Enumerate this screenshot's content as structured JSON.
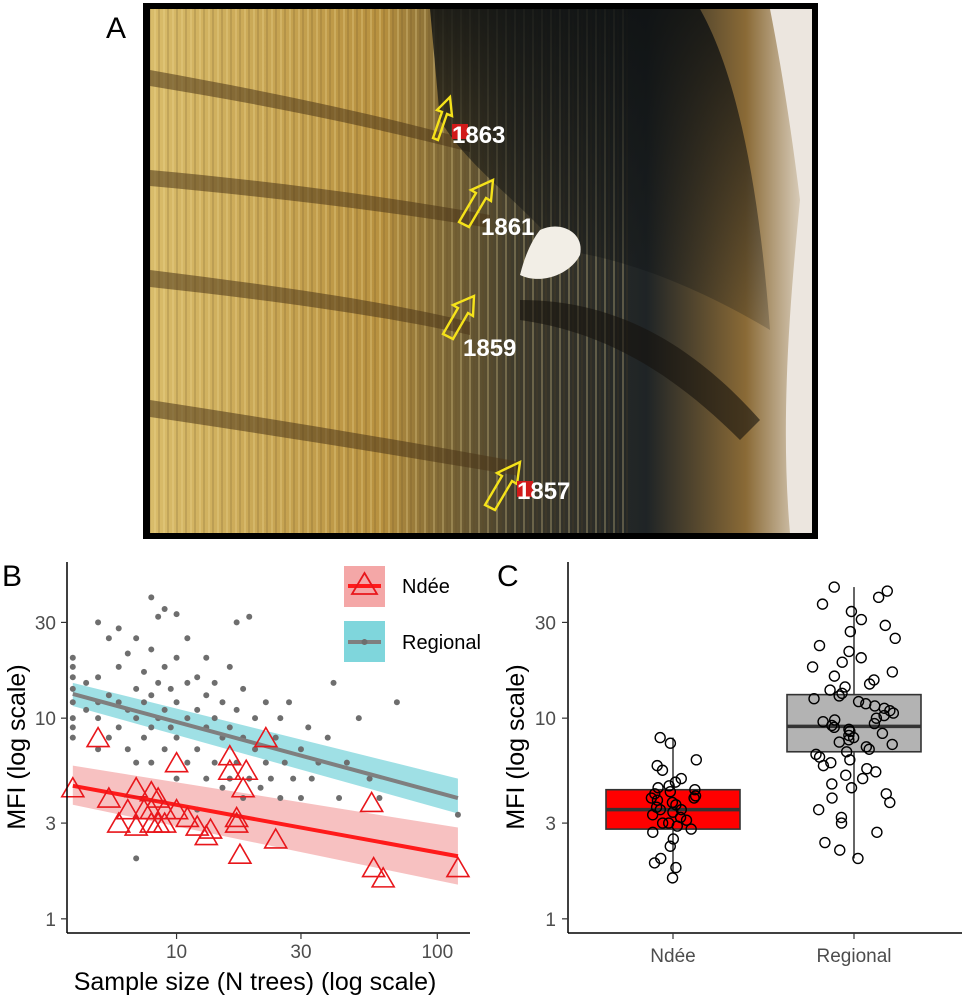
{
  "panels": {
    "a": {
      "letter": "A",
      "ring_years": [
        "1863",
        "1861",
        "1859",
        "1857"
      ]
    },
    "b": {
      "letter": "B"
    },
    "c": {
      "letter": "C"
    }
  },
  "colors": {
    "ndee": "#ff1a1a",
    "ndee_band": "#f4a7a7",
    "regional_line": "#7f7f7f",
    "regional_band": "#7fd6dc",
    "regional_points": "#6e6e6e",
    "ndee_box": "#ff0000",
    "regional_box": "#b3b3b3"
  },
  "chart_data": [
    {
      "type": "scatter",
      "panel": "B",
      "xlabel": "Sample size (N trees) (log scale)",
      "ylabel": "MFI (log scale)",
      "x_scale": "log",
      "y_scale": "log",
      "xlim": [
        3.8,
        130
      ],
      "ylim": [
        0.85,
        60
      ],
      "x_ticks": [
        10,
        30,
        100
      ],
      "y_ticks": [
        1,
        3,
        10,
        30
      ],
      "legend": {
        "position": "top-right",
        "entries": [
          "Ndée",
          "Regional"
        ]
      },
      "series": [
        {
          "name": "Ndée",
          "marker": "open-triangle",
          "points": [
            [
              4,
              4.5
            ],
            [
              5,
              8
            ],
            [
              5.5,
              4
            ],
            [
              6,
              3
            ],
            [
              6.5,
              3.5
            ],
            [
              7,
              2.9
            ],
            [
              7,
              4.5
            ],
            [
              7.5,
              3.5
            ],
            [
              8,
              3
            ],
            [
              8,
              4.3
            ],
            [
              8,
              3.5
            ],
            [
              8.5,
              3
            ],
            [
              8.5,
              4
            ],
            [
              9,
              3.5
            ],
            [
              9,
              3
            ],
            [
              10,
              6
            ],
            [
              10,
              3.5
            ],
            [
              11,
              3.2
            ],
            [
              12,
              2.9
            ],
            [
              13,
              2.6
            ],
            [
              13.5,
              2.8
            ],
            [
              16,
              6.5
            ],
            [
              16,
              5.5
            ],
            [
              17,
              3
            ],
            [
              17,
              3.2
            ],
            [
              17.5,
              2.1
            ],
            [
              18,
              4.5
            ],
            [
              18.5,
              5.5
            ],
            [
              22,
              8
            ],
            [
              24,
              2.5
            ],
            [
              56,
              3.8
            ],
            [
              57,
              1.8
            ],
            [
              62,
              1.6
            ],
            [
              120,
              1.8
            ]
          ],
          "trend": {
            "x": [
              4,
              120
            ],
            "y": [
              4.6,
              2.05
            ],
            "band_lower": [
              3.7,
              1.48
            ],
            "band_upper": [
              5.8,
              2.85
            ]
          }
        },
        {
          "name": "Regional",
          "marker": "filled-dot",
          "points": [
            [
              4,
              8
            ],
            [
              4,
              10
            ],
            [
              4,
              12
            ],
            [
              4,
              14
            ],
            [
              4,
              16
            ],
            [
              4,
              18
            ],
            [
              4,
              20
            ],
            [
              4,
              9
            ],
            [
              4.5,
              11
            ],
            [
              4.5,
              15
            ],
            [
              5,
              7
            ],
            [
              5,
              12
            ],
            [
              5,
              16
            ],
            [
              5,
              30
            ],
            [
              5,
              10
            ],
            [
              5.5,
              8
            ],
            [
              5.5,
              25
            ],
            [
              5.5,
              13
            ],
            [
              6,
              9
            ],
            [
              6,
              12
            ],
            [
              6,
              18
            ],
            [
              6,
              28
            ],
            [
              6.5,
              7
            ],
            [
              6.5,
              11
            ],
            [
              6.5,
              21
            ],
            [
              7,
              6
            ],
            [
              7,
              10
            ],
            [
              7,
              14
            ],
            [
              7,
              2
            ],
            [
              7,
              25
            ],
            [
              7.5,
              8
            ],
            [
              7.5,
              12
            ],
            [
              7.5,
              17
            ],
            [
              8,
              6
            ],
            [
              8,
              9
            ],
            [
              8,
              13
            ],
            [
              8,
              40
            ],
            [
              8,
              22
            ],
            [
              8.5,
              10
            ],
            [
              8.5,
              15
            ],
            [
              8.5,
              32
            ],
            [
              9,
              7
            ],
            [
              9,
              11
            ],
            [
              9,
              18
            ],
            [
              9,
              35
            ],
            [
              9.5,
              9
            ],
            [
              9.5,
              14
            ],
            [
              10,
              5
            ],
            [
              10,
              8
            ],
            [
              10,
              12
            ],
            [
              10,
              20
            ],
            [
              10,
              33
            ],
            [
              11,
              6
            ],
            [
              11,
              10
            ],
            [
              11,
              15
            ],
            [
              11,
              25
            ],
            [
              12,
              7
            ],
            [
              12,
              11
            ],
            [
              12,
              16
            ],
            [
              12,
              3.5
            ],
            [
              13,
              5
            ],
            [
              13,
              9
            ],
            [
              13,
              13
            ],
            [
              13,
              20
            ],
            [
              14,
              6
            ],
            [
              14,
              10
            ],
            [
              14,
              15
            ],
            [
              15,
              4.5
            ],
            [
              15,
              8
            ],
            [
              15,
              12
            ],
            [
              16,
              5
            ],
            [
              16,
              9
            ],
            [
              16,
              18
            ],
            [
              17,
              6
            ],
            [
              17,
              11
            ],
            [
              17,
              30
            ],
            [
              18,
              4
            ],
            [
              18,
              8
            ],
            [
              18,
              14
            ],
            [
              19,
              32
            ],
            [
              19,
              5
            ],
            [
              20,
              7
            ],
            [
              20,
              10
            ],
            [
              21,
              4.5
            ],
            [
              22,
              6
            ],
            [
              22,
              12
            ],
            [
              23,
              5
            ],
            [
              24,
              8
            ],
            [
              25,
              4
            ],
            [
              25,
              10
            ],
            [
              26,
              6
            ],
            [
              27,
              12
            ],
            [
              28,
              5
            ],
            [
              30,
              7
            ],
            [
              30,
              4
            ],
            [
              32,
              9
            ],
            [
              33,
              5
            ],
            [
              35,
              6
            ],
            [
              38,
              8
            ],
            [
              40,
              15
            ],
            [
              42,
              4
            ],
            [
              45,
              6
            ],
            [
              50,
              10
            ],
            [
              55,
              5
            ],
            [
              60,
              4
            ],
            [
              70,
              12
            ],
            [
              120,
              3.3
            ]
          ],
          "trend": {
            "x": [
              4,
              120
            ],
            "y": [
              13.2,
              4.0
            ],
            "band_lower": [
              11.5,
              3.35
            ],
            "band_upper": [
              15.0,
              5.0
            ]
          }
        }
      ]
    },
    {
      "type": "boxplot",
      "panel": "C",
      "ylabel": "MFI (log scale)",
      "y_scale": "log",
      "ylim": [
        0.85,
        60
      ],
      "y_ticks": [
        1,
        3,
        10,
        30
      ],
      "categories": [
        "Ndée",
        "Regional"
      ],
      "boxes": [
        {
          "name": "Ndée",
          "whisker_low": 1.7,
          "q1": 2.8,
          "median": 3.5,
          "q3": 4.4,
          "whisker_high": 8.0
        },
        {
          "name": "Regional",
          "whisker_low": 2.0,
          "q1": 6.8,
          "median": 9.1,
          "q3": 13.1,
          "whisker_high": 45.0
        }
      ],
      "jitter_points": [
        {
          "name": "Ndée",
          "values": [
            1.6,
            1.8,
            1.9,
            2.0,
            2.3,
            2.5,
            2.7,
            2.8,
            2.9,
            3.0,
            3.0,
            3.1,
            3.2,
            3.3,
            3.4,
            3.5,
            3.5,
            3.6,
            3.7,
            3.8,
            3.9,
            4.0,
            4.0,
            4.1,
            4.2,
            4.3,
            4.4,
            4.5,
            4.6,
            4.8,
            5.0,
            5.5,
            5.8,
            6.2,
            7.5,
            8.0
          ]
        },
        {
          "name": "Regional",
          "values": [
            2.0,
            2.2,
            2.4,
            2.7,
            3.0,
            3.2,
            3.5,
            3.8,
            4.0,
            4.2,
            4.5,
            4.7,
            5.0,
            5.2,
            5.4,
            5.6,
            5.8,
            6.0,
            6.2,
            6.4,
            6.6,
            6.8,
            7.0,
            7.2,
            7.4,
            7.6,
            7.8,
            8.0,
            8.2,
            8.4,
            8.6,
            8.8,
            9.0,
            9.2,
            9.4,
            9.6,
            9.8,
            10.0,
            10.3,
            10.6,
            10.9,
            11.2,
            11.5,
            11.8,
            12.1,
            12.5,
            12.9,
            13.3,
            13.8,
            14.3,
            14.8,
            15.5,
            16.2,
            17.0,
            18.0,
            19.0,
            20.0,
            21.5,
            23.0,
            25.0,
            27.0,
            29.0,
            31.0,
            34.0,
            37.0,
            40.0,
            43.0,
            45.0
          ]
        }
      ]
    }
  ]
}
